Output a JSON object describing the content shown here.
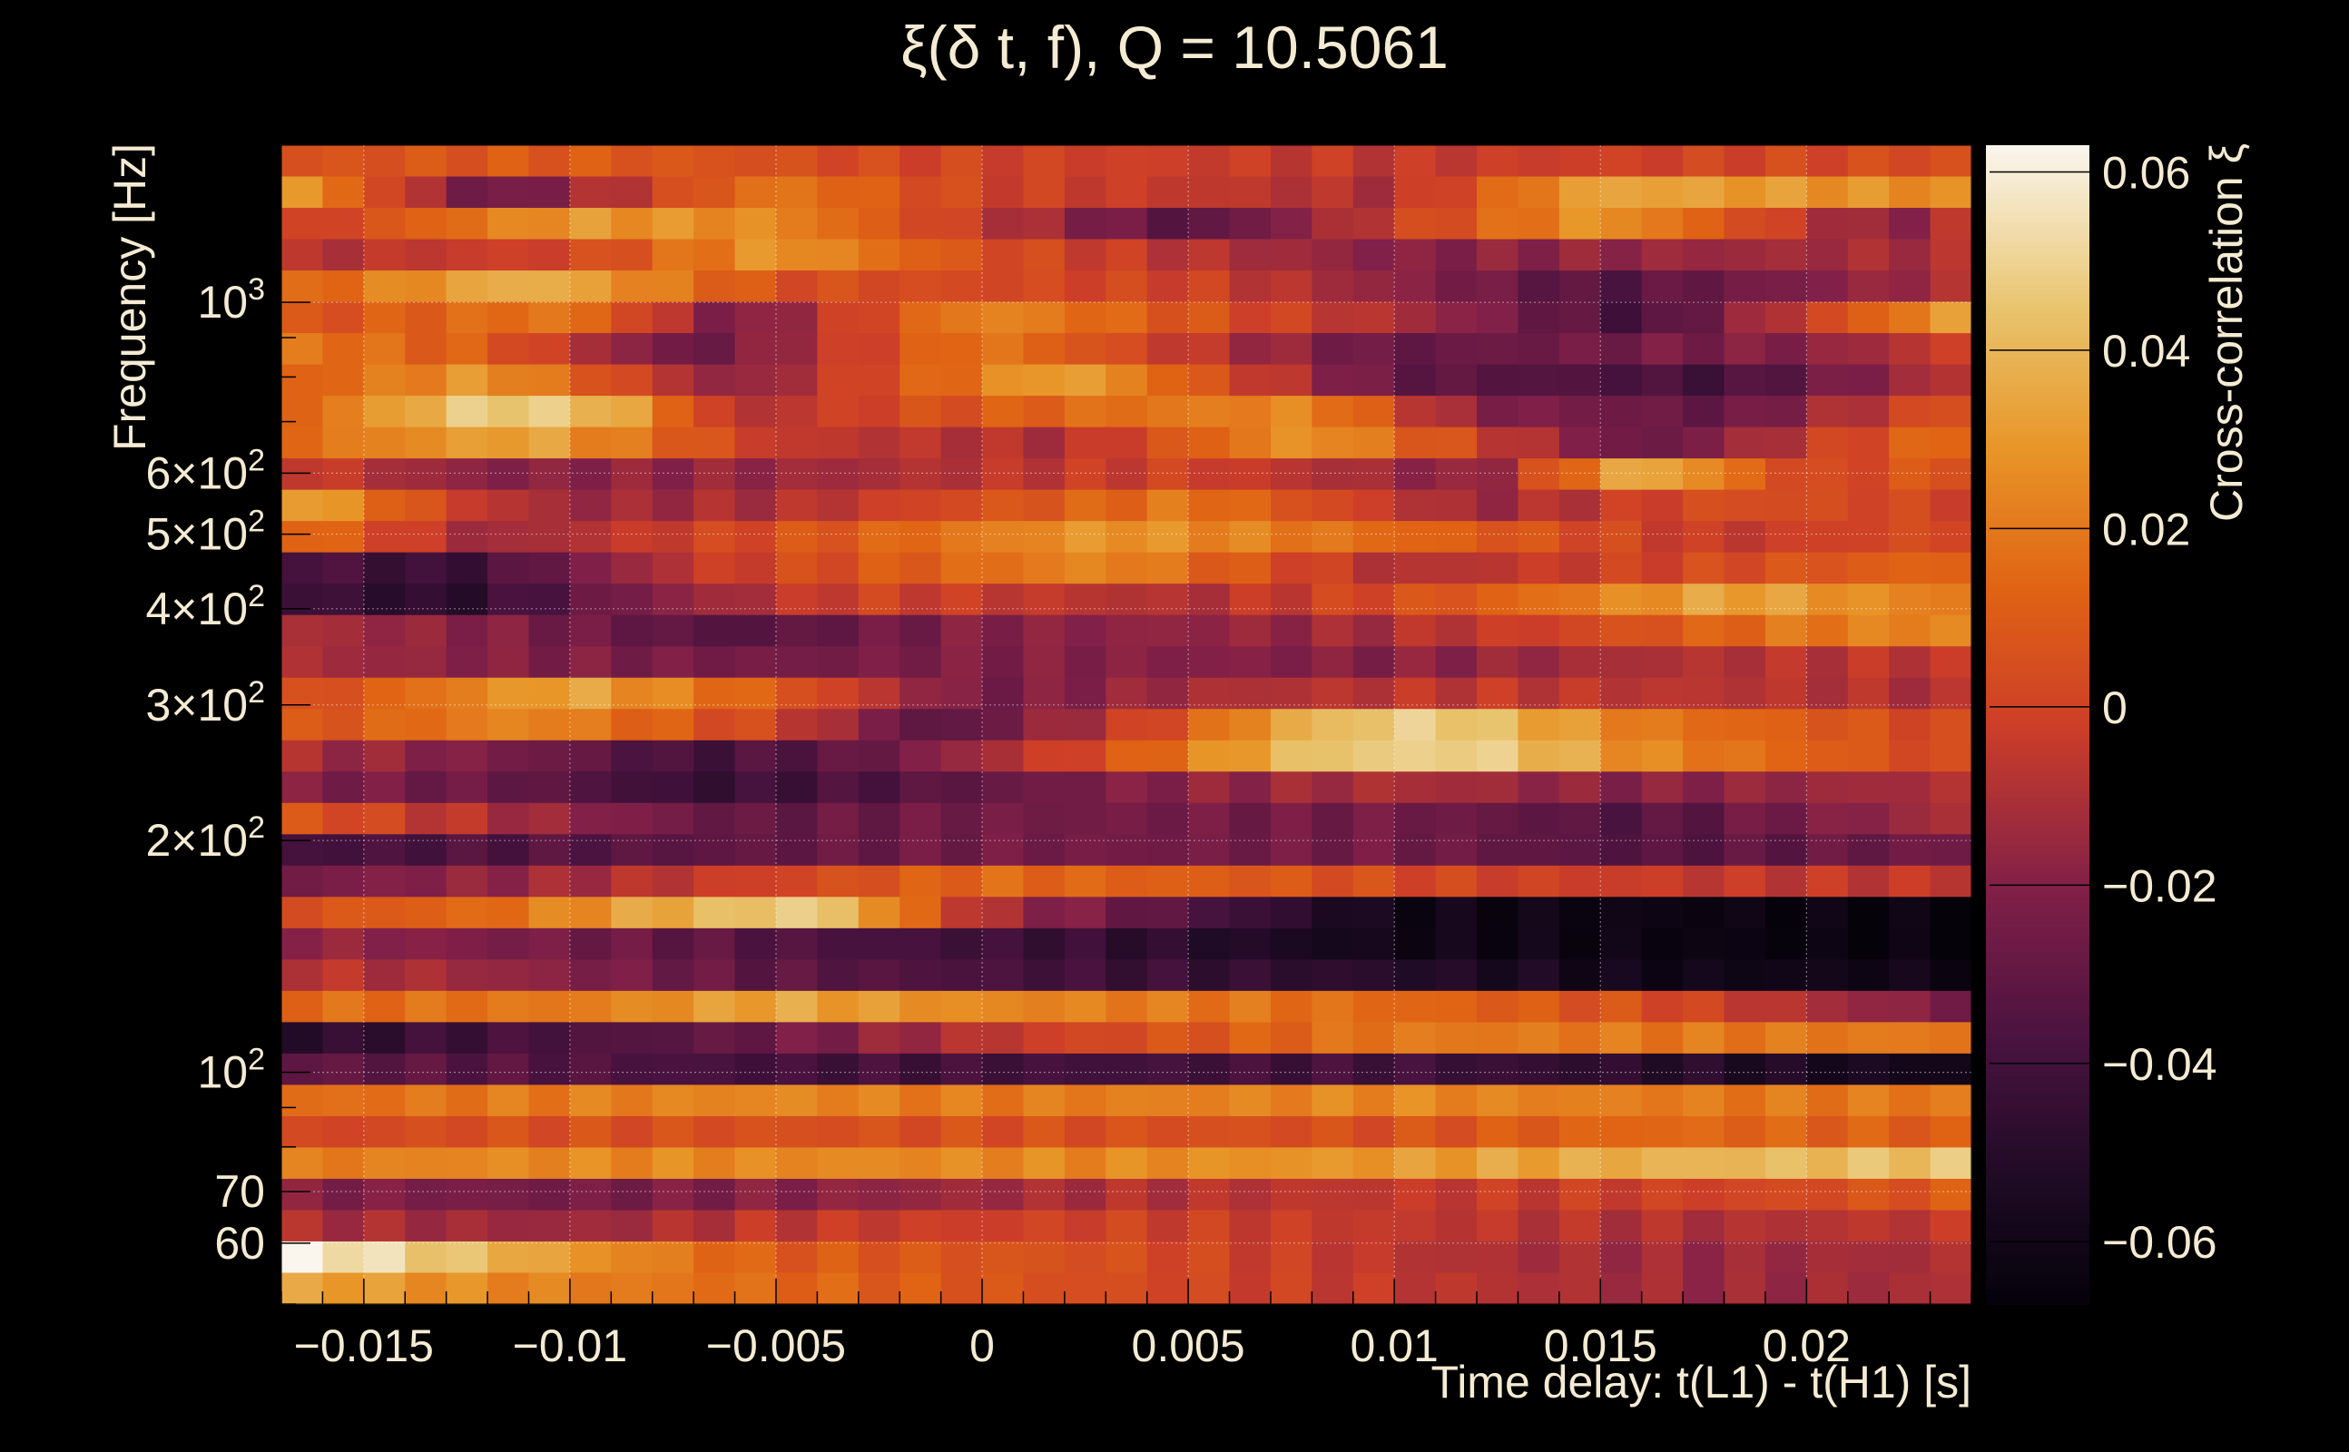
{
  "chart_data": {
    "type": "heatmap",
    "title": "ξ(δ t, f), Q = 10.5061",
    "xlabel": "Time delay: t(L1) - t(H1) [s]",
    "ylabel": "Frequency [Hz]",
    "colorbar_label": "Cross-correlation ξ",
    "x_range": [
      -0.017,
      0.024
    ],
    "y_range_hz": [
      50,
      1600
    ],
    "y_scale": "log",
    "z_range": [
      -0.067,
      0.063
    ],
    "grid": true,
    "colormap": "inferno",
    "x_ticks": [
      {
        "value": -0.015,
        "label": "−0.015"
      },
      {
        "value": -0.01,
        "label": "−0.01"
      },
      {
        "value": -0.005,
        "label": "−0.005"
      },
      {
        "value": 0,
        "label": "0"
      },
      {
        "value": 0.005,
        "label": "0.005"
      },
      {
        "value": 0.01,
        "label": "0.01"
      },
      {
        "value": 0.015,
        "label": "0.015"
      },
      {
        "value": 0.02,
        "label": "0.02"
      }
    ],
    "y_ticks": [
      {
        "value": 60,
        "base": "60",
        "exp": ""
      },
      {
        "value": 70,
        "base": "70",
        "exp": ""
      },
      {
        "value": 100,
        "base": "10",
        "exp": "2"
      },
      {
        "value": 200,
        "base": "2×10",
        "exp": "2"
      },
      {
        "value": 300,
        "base": "3×10",
        "exp": "2"
      },
      {
        "value": 400,
        "base": "4×10",
        "exp": "2"
      },
      {
        "value": 500,
        "base": "5×10",
        "exp": "2"
      },
      {
        "value": 600,
        "base": "6×10",
        "exp": "2"
      },
      {
        "value": 1000,
        "base": "10",
        "exp": "3"
      }
    ],
    "z_ticks": [
      {
        "value": 0.06,
        "label": "0.06"
      },
      {
        "value": 0.04,
        "label": "0.04"
      },
      {
        "value": 0.02,
        "label": "0.02"
      },
      {
        "value": 0,
        "label": "0"
      },
      {
        "value": -0.02,
        "label": "−0.02"
      },
      {
        "value": -0.04,
        "label": "−0.04"
      },
      {
        "value": -0.06,
        "label": "−0.06"
      }
    ],
    "columns": 41,
    "rows_profile": [
      [
        [
          -0.017,
          0.005
        ],
        [
          -0.01,
          0.01
        ],
        [
          0,
          0.0
        ],
        [
          0.01,
          -0.005
        ],
        [
          0.024,
          0.005
        ]
      ],
      [
        [
          -0.017,
          0.035
        ],
        [
          -0.012,
          -0.03
        ],
        [
          -0.005,
          0.02
        ],
        [
          0,
          0.0
        ],
        [
          0.01,
          -0.01
        ],
        [
          0.015,
          0.035
        ],
        [
          0.024,
          0.025
        ]
      ],
      [
        [
          -0.017,
          -0.005
        ],
        [
          -0.01,
          0.03
        ],
        [
          -0.005,
          0.025
        ],
        [
          0.005,
          -0.035
        ],
        [
          0.015,
          0.03
        ],
        [
          0.022,
          -0.02
        ],
        [
          0.024,
          -0.005
        ]
      ],
      [
        [
          -0.017,
          -0.01
        ],
        [
          -0.01,
          0.0
        ],
        [
          -0.005,
          0.03
        ],
        [
          0,
          0.005
        ],
        [
          0.01,
          -0.02
        ],
        [
          0.024,
          -0.01
        ]
      ],
      [
        [
          -0.017,
          0.01
        ],
        [
          -0.011,
          0.04
        ],
        [
          -0.005,
          0.005
        ],
        [
          0.005,
          0.0
        ],
        [
          0.015,
          -0.035
        ],
        [
          0.024,
          -0.01
        ]
      ],
      [
        [
          -0.017,
          0.005
        ],
        [
          -0.01,
          0.02
        ],
        [
          -0.006,
          -0.025
        ],
        [
          0,
          0.025
        ],
        [
          0.01,
          -0.01
        ],
        [
          0.016,
          -0.04
        ],
        [
          0.024,
          0.035
        ]
      ],
      [
        [
          -0.017,
          0.02
        ],
        [
          -0.012,
          0.01
        ],
        [
          -0.007,
          -0.03
        ],
        [
          0,
          0.02
        ],
        [
          0.01,
          -0.03
        ],
        [
          0.02,
          -0.02
        ],
        [
          0.024,
          0.0
        ]
      ],
      [
        [
          -0.017,
          0.01
        ],
        [
          -0.012,
          0.03
        ],
        [
          -0.006,
          -0.02
        ],
        [
          0.002,
          0.035
        ],
        [
          0.01,
          -0.03
        ],
        [
          0.018,
          -0.04
        ],
        [
          0.024,
          -0.005
        ]
      ],
      [
        [
          -0.017,
          0.01
        ],
        [
          -0.012,
          0.05
        ],
        [
          -0.009,
          0.04
        ],
        [
          -0.006,
          -0.01
        ],
        [
          0.002,
          0.015
        ],
        [
          0.008,
          0.025
        ],
        [
          0.012,
          -0.02
        ],
        [
          0.018,
          -0.03
        ],
        [
          0.024,
          0.01
        ]
      ],
      [
        [
          -0.017,
          0.015
        ],
        [
          -0.011,
          0.035
        ],
        [
          -0.005,
          -0.005
        ],
        [
          0.002,
          -0.01
        ],
        [
          0.008,
          0.03
        ],
        [
          0.012,
          0.0
        ],
        [
          0.016,
          -0.03
        ],
        [
          0.024,
          0.02
        ]
      ],
      [
        [
          -0.017,
          0.0
        ],
        [
          -0.012,
          -0.02
        ],
        [
          -0.005,
          -0.015
        ],
        [
          0.005,
          0.0
        ],
        [
          0.012,
          -0.02
        ],
        [
          0.016,
          0.04
        ],
        [
          0.02,
          0.0
        ],
        [
          0.024,
          0.01
        ]
      ],
      [
        [
          -0.017,
          0.04
        ],
        [
          -0.013,
          0.0
        ],
        [
          -0.01,
          -0.015
        ],
        [
          -0.005,
          -0.01
        ],
        [
          0.005,
          0.02
        ],
        [
          0.012,
          -0.015
        ],
        [
          0.018,
          0.005
        ],
        [
          0.024,
          0.0
        ]
      ],
      [
        [
          -0.017,
          0.02
        ],
        [
          -0.012,
          -0.015
        ],
        [
          -0.005,
          0.005
        ],
        [
          0.003,
          0.03
        ],
        [
          0.01,
          0.015
        ],
        [
          0.018,
          -0.005
        ],
        [
          0.024,
          0.005
        ]
      ],
      [
        [
          -0.017,
          -0.035
        ],
        [
          -0.013,
          -0.045
        ],
        [
          -0.007,
          -0.005
        ],
        [
          0.003,
          0.025
        ],
        [
          0.01,
          -0.01
        ],
        [
          0.016,
          0.0
        ],
        [
          0.024,
          0.015
        ]
      ],
      [
        [
          -0.017,
          -0.04
        ],
        [
          -0.013,
          -0.05
        ],
        [
          -0.008,
          -0.02
        ],
        [
          -0.003,
          0.0
        ],
        [
          0.005,
          -0.01
        ],
        [
          0.012,
          0.01
        ],
        [
          0.018,
          0.035
        ],
        [
          0.024,
          0.02
        ]
      ],
      [
        [
          -0.017,
          -0.01
        ],
        [
          -0.012,
          -0.02
        ],
        [
          -0.006,
          -0.035
        ],
        [
          0.0,
          -0.02
        ],
        [
          0.008,
          -0.015
        ],
        [
          0.014,
          0.0
        ],
        [
          0.02,
          0.02
        ],
        [
          0.024,
          0.025
        ]
      ],
      [
        [
          -0.017,
          -0.01
        ],
        [
          -0.012,
          -0.02
        ],
        [
          -0.005,
          -0.025
        ],
        [
          0.002,
          -0.02
        ],
        [
          0.01,
          -0.02
        ],
        [
          0.016,
          -0.01
        ],
        [
          0.024,
          -0.005
        ]
      ],
      [
        [
          -0.017,
          0.0
        ],
        [
          -0.013,
          0.02
        ],
        [
          -0.01,
          0.035
        ],
        [
          -0.005,
          0.01
        ],
        [
          0.0,
          -0.025
        ],
        [
          0.006,
          -0.01
        ],
        [
          0.012,
          -0.005
        ],
        [
          0.024,
          -0.01
        ]
      ],
      [
        [
          -0.017,
          0.005
        ],
        [
          -0.011,
          0.025
        ],
        [
          -0.005,
          0.0
        ],
        [
          -0.001,
          -0.035
        ],
        [
          0.004,
          0.0
        ],
        [
          0.008,
          0.04
        ],
        [
          0.011,
          0.05
        ],
        [
          0.016,
          0.02
        ],
        [
          0.024,
          0.0
        ]
      ],
      [
        [
          -0.017,
          -0.01
        ],
        [
          -0.011,
          -0.025
        ],
        [
          -0.007,
          -0.04
        ],
        [
          -0.003,
          -0.03
        ],
        [
          0.003,
          0.005
        ],
        [
          0.008,
          0.045
        ],
        [
          0.012,
          0.05
        ],
        [
          0.016,
          0.025
        ],
        [
          0.024,
          0.0
        ]
      ],
      [
        [
          -0.017,
          -0.02
        ],
        [
          -0.011,
          -0.03
        ],
        [
          -0.007,
          -0.045
        ],
        [
          -0.002,
          -0.035
        ],
        [
          0.004,
          -0.02
        ],
        [
          0.01,
          -0.01
        ],
        [
          0.016,
          -0.02
        ],
        [
          0.024,
          -0.01
        ]
      ],
      [
        [
          -0.017,
          0.01
        ],
        [
          -0.012,
          -0.01
        ],
        [
          -0.006,
          -0.03
        ],
        [
          0.0,
          -0.025
        ],
        [
          0.01,
          -0.025
        ],
        [
          0.016,
          -0.035
        ],
        [
          0.024,
          -0.01
        ]
      ],
      [
        [
          -0.017,
          -0.04
        ],
        [
          -0.011,
          -0.035
        ],
        [
          -0.005,
          -0.03
        ],
        [
          0.0,
          -0.025
        ],
        [
          0.01,
          -0.025
        ],
        [
          0.016,
          -0.035
        ],
        [
          0.024,
          -0.025
        ]
      ],
      [
        [
          -0.017,
          -0.025
        ],
        [
          -0.011,
          -0.015
        ],
        [
          -0.005,
          0.0
        ],
        [
          0.0,
          0.015
        ],
        [
          0.006,
          0.01
        ],
        [
          0.012,
          0.0
        ],
        [
          0.018,
          -0.005
        ],
        [
          0.024,
          -0.005
        ]
      ],
      [
        [
          -0.017,
          0.005
        ],
        [
          -0.012,
          0.015
        ],
        [
          -0.008,
          0.035
        ],
        [
          -0.004,
          0.05
        ],
        [
          0.0,
          -0.01
        ],
        [
          0.005,
          -0.035
        ],
        [
          0.01,
          -0.06
        ],
        [
          0.024,
          -0.065
        ]
      ],
      [
        [
          -0.017,
          -0.015
        ],
        [
          -0.01,
          -0.025
        ],
        [
          -0.005,
          -0.035
        ],
        [
          0.003,
          -0.045
        ],
        [
          0.01,
          -0.06
        ],
        [
          0.024,
          -0.066
        ]
      ],
      [
        [
          -0.017,
          -0.005
        ],
        [
          -0.012,
          -0.015
        ],
        [
          -0.006,
          -0.03
        ],
        [
          0.002,
          -0.04
        ],
        [
          0.01,
          -0.05
        ],
        [
          0.016,
          -0.06
        ],
        [
          0.024,
          -0.06
        ]
      ],
      [
        [
          -0.017,
          0.015
        ],
        [
          -0.01,
          0.02
        ],
        [
          -0.005,
          0.035
        ],
        [
          0.0,
          0.025
        ],
        [
          0.01,
          0.015
        ],
        [
          0.016,
          0.005
        ],
        [
          0.024,
          -0.025
        ]
      ],
      [
        [
          -0.017,
          -0.05
        ],
        [
          -0.012,
          -0.04
        ],
        [
          -0.006,
          -0.03
        ],
        [
          0.002,
          0.0
        ],
        [
          0.01,
          0.02
        ],
        [
          0.024,
          0.02
        ]
      ],
      [
        [
          -0.017,
          -0.03
        ],
        [
          -0.01,
          -0.035
        ],
        [
          -0.005,
          -0.04
        ],
        [
          0.003,
          -0.04
        ],
        [
          0.01,
          -0.04
        ],
        [
          0.024,
          -0.06
        ]
      ],
      [
        [
          -0.017,
          0.015
        ],
        [
          -0.012,
          0.02
        ],
        [
          -0.005,
          0.025
        ],
        [
          0.0,
          0.02
        ],
        [
          0.01,
          0.025
        ],
        [
          0.018,
          0.02
        ],
        [
          0.024,
          0.02
        ]
      ],
      [
        [
          -0.017,
          0.0
        ],
        [
          -0.012,
          0.005
        ],
        [
          -0.005,
          0.005
        ],
        [
          0.003,
          0.005
        ],
        [
          0.01,
          0.005
        ],
        [
          0.016,
          0.015
        ],
        [
          0.024,
          0.01
        ]
      ],
      [
        [
          -0.017,
          0.02
        ],
        [
          -0.012,
          0.025
        ],
        [
          -0.005,
          0.025
        ],
        [
          0.003,
          0.025
        ],
        [
          0.01,
          0.03
        ],
        [
          0.018,
          0.04
        ],
        [
          0.024,
          0.045
        ]
      ],
      [
        [
          -0.017,
          -0.02
        ],
        [
          -0.01,
          -0.025
        ],
        [
          -0.005,
          -0.02
        ],
        [
          0.003,
          -0.01
        ],
        [
          0.01,
          -0.005
        ],
        [
          0.018,
          0.0
        ],
        [
          0.024,
          0.01
        ]
      ],
      [
        [
          -0.017,
          -0.01
        ],
        [
          -0.01,
          -0.015
        ],
        [
          -0.005,
          -0.005
        ],
        [
          0.003,
          0.0
        ],
        [
          0.01,
          -0.005
        ],
        [
          0.018,
          -0.01
        ],
        [
          0.024,
          -0.005
        ]
      ],
      [
        [
          -0.017,
          0.062
        ],
        [
          -0.014,
          0.05
        ],
        [
          -0.01,
          0.03
        ],
        [
          -0.005,
          0.01
        ],
        [
          0.003,
          0.005
        ],
        [
          0.012,
          -0.01
        ],
        [
          0.018,
          -0.015
        ],
        [
          0.024,
          -0.01
        ]
      ],
      [
        [
          -0.017,
          0.035
        ],
        [
          -0.012,
          0.025
        ],
        [
          -0.005,
          0.015
        ],
        [
          0.002,
          0.005
        ],
        [
          0.01,
          -0.005
        ],
        [
          0.018,
          -0.015
        ],
        [
          0.024,
          -0.01
        ]
      ]
    ]
  }
}
